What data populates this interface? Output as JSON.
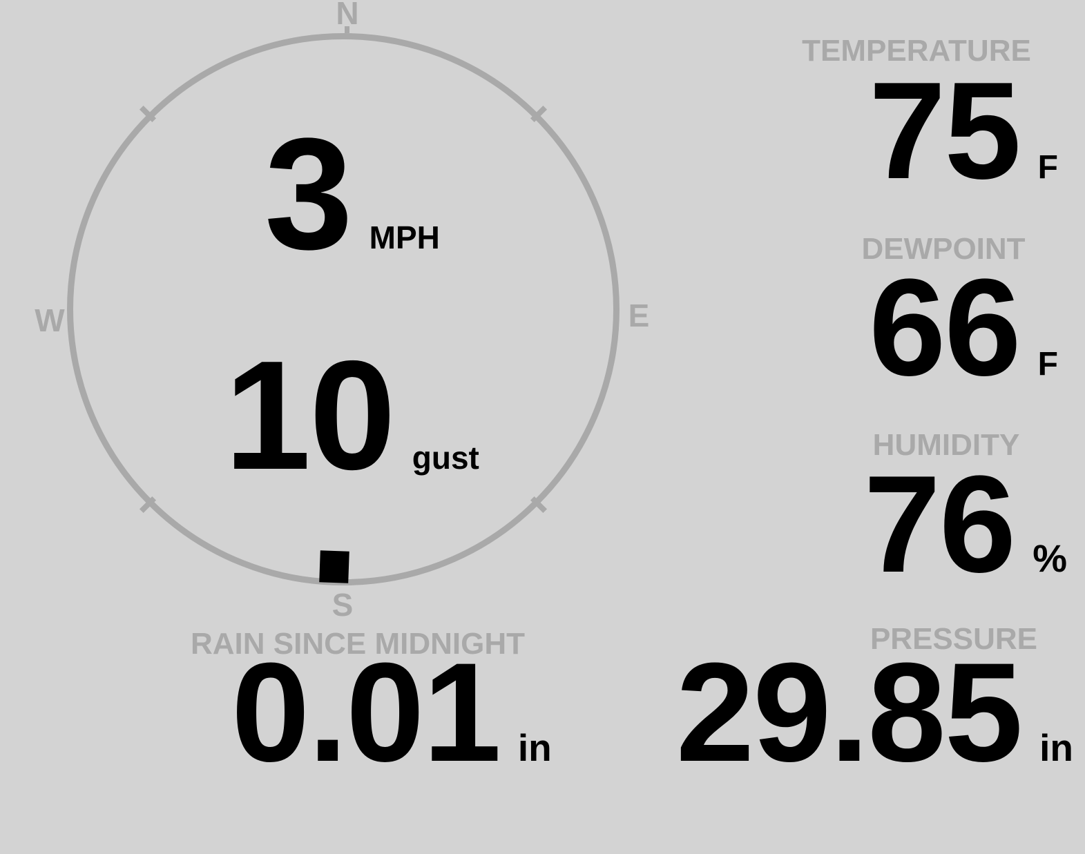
{
  "theme": {
    "background": "#d3d3d3",
    "muted_gray": "#a9a9a9",
    "text_black": "#000000"
  },
  "wind": {
    "speed": "3",
    "speed_unit": "MPH",
    "gust": "10",
    "gust_unit": "gust",
    "direction_deg": 182,
    "compass": {
      "north": "N",
      "east": "E",
      "south": "S",
      "west": "W"
    }
  },
  "metrics": {
    "temperature": {
      "label": "TEMPERATURE",
      "value": "75",
      "unit": "F"
    },
    "dewpoint": {
      "label": "DEWPOINT",
      "value": "66",
      "unit": "F"
    },
    "humidity": {
      "label": "HUMIDITY",
      "value": "76",
      "unit": "%"
    },
    "rain": {
      "label": "RAIN SINCE MIDNIGHT",
      "value": "0.01",
      "unit": "in"
    },
    "pressure": {
      "label": "PRESSURE",
      "value": "29.85",
      "unit": "in"
    }
  }
}
